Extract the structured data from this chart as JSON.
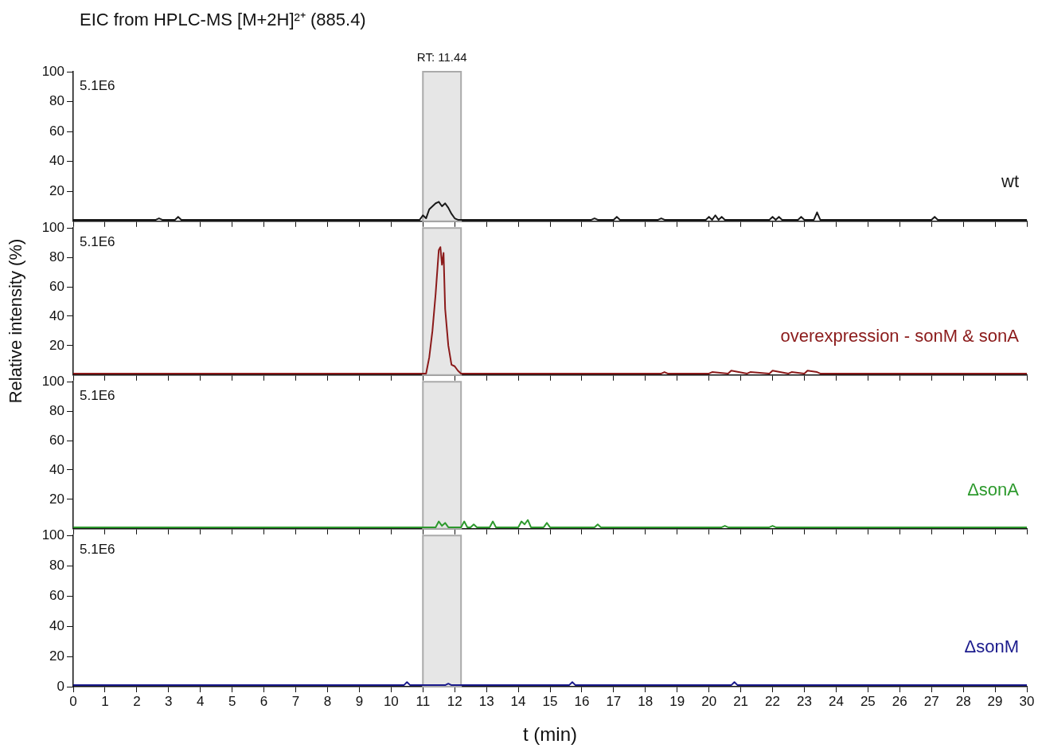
{
  "chart_data": [
    {
      "type": "line",
      "title": "EIC from HPLC-MS [M+2H]²⁺ (885.4)",
      "annotations": [
        "5.1E6"
      ],
      "xlim": [
        0,
        30
      ],
      "xticks": [
        0,
        1,
        2,
        3,
        4,
        5,
        6,
        7,
        8,
        9,
        10,
        11,
        12,
        13,
        14,
        15,
        16,
        17,
        18,
        19,
        20,
        21,
        22,
        23,
        24,
        25,
        26,
        27,
        28,
        29,
        30
      ],
      "ylim": [
        0,
        100
      ],
      "yticks": [
        20,
        40,
        60,
        80,
        100
      ],
      "tick_labels": "y",
      "grid": false,
      "legend": false,
      "marker": "none",
      "bands": [
        {
          "axis": "x",
          "from": 11,
          "to": 12.2,
          "label": "RT: 11.44",
          "color": "#e6e6e6"
        }
      ],
      "series": [
        {
          "name": "wt",
          "color": "#1a1a1a",
          "x": [
            0,
            2.6,
            2.7,
            2.8,
            3.2,
            3.3,
            3.4,
            10.9,
            11,
            11.1,
            11.2,
            11.3,
            11.4,
            11.5,
            11.6,
            11.7,
            11.8,
            11.9,
            12,
            12.1,
            16.3,
            16.4,
            16.5,
            17,
            17.1,
            17.2,
            18.4,
            18.5,
            18.6,
            19.9,
            20,
            20.1,
            20.2,
            20.3,
            20.4,
            20.5,
            21.9,
            22,
            22.1,
            22.2,
            22.3,
            22.8,
            22.9,
            23,
            23.3,
            23.4,
            23.5,
            27,
            27.1,
            27.2,
            30
          ],
          "values": [
            1,
            1,
            2,
            1,
            1,
            3,
            1,
            1,
            4,
            2,
            8,
            10,
            12,
            13,
            10,
            12,
            9,
            5,
            2,
            1,
            1,
            2,
            1,
            1,
            3,
            1,
            1,
            2,
            1,
            1,
            3,
            1,
            4,
            1,
            3,
            1,
            1,
            3,
            1,
            3,
            1,
            1,
            3,
            1,
            1,
            6,
            1,
            1,
            3,
            1,
            1
          ]
        }
      ]
    },
    {
      "type": "line",
      "ylabel": "Relative intensity (%)",
      "annotations": [
        "5.1E6"
      ],
      "xlim": [
        0,
        30
      ],
      "xticks": [
        0,
        1,
        2,
        3,
        4,
        5,
        6,
        7,
        8,
        9,
        10,
        11,
        12,
        13,
        14,
        15,
        16,
        17,
        18,
        19,
        20,
        21,
        22,
        23,
        24,
        25,
        26,
        27,
        28,
        29,
        30
      ],
      "ylim": [
        0,
        100
      ],
      "yticks": [
        20,
        40,
        60,
        80,
        100
      ],
      "tick_labels": "y",
      "grid": false,
      "legend": false,
      "marker": "none",
      "bands": [
        {
          "axis": "x",
          "from": 11,
          "to": 12.2,
          "color": "#e6e6e6"
        }
      ],
      "series": [
        {
          "name": "overexpression - sonM & sonA",
          "color": "#8b1a1a",
          "x": [
            0,
            11,
            11.1,
            11.2,
            11.3,
            11.4,
            11.5,
            11.55,
            11.6,
            11.65,
            11.7,
            11.8,
            11.9,
            12,
            12.1,
            12.2,
            18.5,
            18.6,
            18.7,
            20,
            20.1,
            20.6,
            20.7,
            21.2,
            21.3,
            21.9,
            22,
            22.5,
            22.6,
            23,
            23.1,
            23.4,
            23.5,
            30
          ],
          "values": [
            1,
            1,
            1,
            12,
            30,
            55,
            85,
            87,
            75,
            83,
            45,
            20,
            7,
            6,
            3,
            1,
            1,
            2,
            1,
            1,
            2,
            1,
            3,
            1,
            2,
            1,
            3,
            1,
            2,
            1,
            3,
            2,
            1,
            1
          ]
        }
      ]
    },
    {
      "type": "line",
      "annotations": [
        "5.1E6"
      ],
      "xlim": [
        0,
        30
      ],
      "xticks": [
        0,
        1,
        2,
        3,
        4,
        5,
        6,
        7,
        8,
        9,
        10,
        11,
        12,
        13,
        14,
        15,
        16,
        17,
        18,
        19,
        20,
        21,
        22,
        23,
        24,
        25,
        26,
        27,
        28,
        29,
        30
      ],
      "ylim": [
        0,
        100
      ],
      "yticks": [
        20,
        40,
        60,
        80,
        100
      ],
      "tick_labels": "y",
      "grid": false,
      "legend": false,
      "marker": "none",
      "bands": [
        {
          "axis": "x",
          "from": 11,
          "to": 12.2,
          "color": "#e6e6e6"
        }
      ],
      "series": [
        {
          "name": "ΔsonA",
          "color": "#2e9a2e",
          "x": [
            0,
            11.4,
            11.5,
            11.6,
            11.7,
            11.8,
            12.2,
            12.3,
            12.4,
            12.5,
            12.6,
            12.7,
            13.1,
            13.2,
            13.3,
            14,
            14.1,
            14.2,
            14.3,
            14.4,
            14.8,
            14.9,
            15,
            16.4,
            16.5,
            16.6,
            20.4,
            20.5,
            20.6,
            21.9,
            22,
            22.1,
            30
          ],
          "values": [
            1,
            1,
            5,
            2,
            4,
            1,
            1,
            5,
            1,
            1,
            3,
            1,
            1,
            5,
            1,
            1,
            5,
            3,
            6,
            1,
            1,
            4,
            1,
            1,
            3,
            1,
            1,
            2,
            1,
            1,
            2,
            1,
            1
          ]
        }
      ]
    },
    {
      "type": "line",
      "xlabel": "t (min)",
      "annotations": [
        "5.1E6"
      ],
      "xlim": [
        0,
        30
      ],
      "xticks": [
        0,
        1,
        2,
        3,
        4,
        5,
        6,
        7,
        8,
        9,
        10,
        11,
        12,
        13,
        14,
        15,
        16,
        17,
        18,
        19,
        20,
        21,
        22,
        23,
        24,
        25,
        26,
        27,
        28,
        29,
        30
      ],
      "ylim": [
        0,
        100
      ],
      "yticks": [
        0,
        20,
        40,
        60,
        80,
        100
      ],
      "grid": false,
      "legend": false,
      "marker": "none",
      "bands": [
        {
          "axis": "x",
          "from": 11,
          "to": 12.2,
          "color": "#e6e6e6"
        }
      ],
      "series": [
        {
          "name": "ΔsonM",
          "color": "#1a1a8c",
          "x": [
            0,
            10.4,
            10.5,
            10.6,
            11.7,
            11.8,
            11.9,
            15.6,
            15.7,
            15.8,
            20.7,
            20.8,
            20.9,
            30
          ],
          "values": [
            1,
            1,
            3,
            1,
            1,
            2,
            1,
            1,
            3,
            1,
            1,
            3,
            1,
            1
          ]
        }
      ]
    }
  ]
}
